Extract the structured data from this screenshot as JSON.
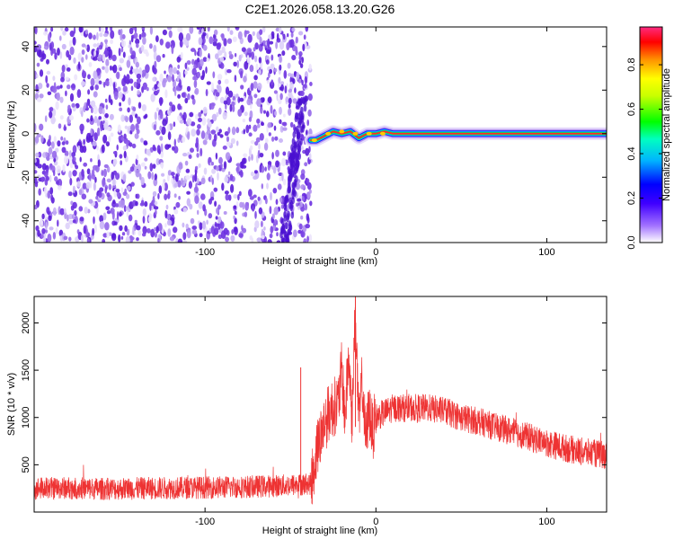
{
  "title": "C2E1.2026.058.13.20.G26",
  "chart_data": [
    {
      "type": "heatmap",
      "xlabel": "Height of straight line (km)",
      "ylabel": "Frequency (Hz)",
      "xlim": [
        -200,
        135
      ],
      "ylim": [
        -50,
        49
      ],
      "xticks": [
        -100,
        0,
        100
      ],
      "xtick_labels": [
        "-100",
        "0",
        "100"
      ],
      "yticks": [
        -40,
        -20,
        0,
        20,
        40
      ],
      "ytick_labels": [
        "-40",
        "-20",
        "0",
        "20",
        "40"
      ],
      "noise_region_x": [
        -200,
        -38
      ],
      "signal_track": {
        "x": [
          -38,
          -35,
          -30,
          -25,
          -20,
          -15,
          -10,
          -5,
          0,
          5,
          10,
          135
        ],
        "y": [
          -3,
          -3,
          -1,
          1,
          0,
          1,
          -2,
          0,
          0,
          1,
          0,
          0
        ]
      },
      "colorbar": {
        "label": "Normalized spectral amplitude",
        "ticks": [
          0.0,
          0.2,
          0.4,
          0.6,
          0.8
        ],
        "tick_labels": [
          "0.0",
          "0.2",
          "0.4",
          "0.6",
          "0.8"
        ],
        "range": [
          0,
          0.97
        ],
        "colormap": [
          "#ffffff",
          "#6020e0",
          "#0000ff",
          "#00c8ff",
          "#00ff40",
          "#ffff00",
          "#ff8000",
          "#ff0000",
          "#ff2080"
        ]
      },
      "grid": false
    },
    {
      "type": "line",
      "xlabel": "Height of straight line (km)",
      "ylabel": "SNR (10 * v/v)",
      "xlim": [
        -200,
        135
      ],
      "ylim": [
        0,
        2280
      ],
      "xticks": [
        -100,
        0,
        100
      ],
      "xtick_labels": [
        "-100",
        "0",
        "100"
      ],
      "yticks": [
        500,
        1000,
        1500,
        2000
      ],
      "ytick_labels": [
        "500",
        "1000",
        "1500",
        "2000"
      ],
      "color": "#ee3333",
      "series": [
        {
          "x": [
            -200,
            -180,
            -160,
            -140,
            -120,
            -100,
            -80,
            -60,
            -45,
            -38,
            -34,
            -30,
            -26,
            -22,
            -20,
            -18,
            -16,
            -14,
            -12,
            -10,
            -8,
            -6,
            -4,
            -2,
            0,
            5,
            10,
            20,
            30,
            40,
            50,
            60,
            70,
            80,
            90,
            100,
            110,
            120,
            135
          ],
          "y": [
            250,
            255,
            245,
            250,
            255,
            260,
            265,
            275,
            290,
            300,
            700,
            950,
            1100,
            1150,
            1500,
            1000,
            1650,
            1000,
            2150,
            900,
            1400,
            750,
            1100,
            850,
            1000,
            1050,
            1100,
            1100,
            1100,
            1070,
            1000,
            960,
            900,
            850,
            790,
            730,
            680,
            640,
            600
          ]
        }
      ],
      "spike": {
        "x": -44,
        "y": 1530
      },
      "grid": false
    }
  ]
}
